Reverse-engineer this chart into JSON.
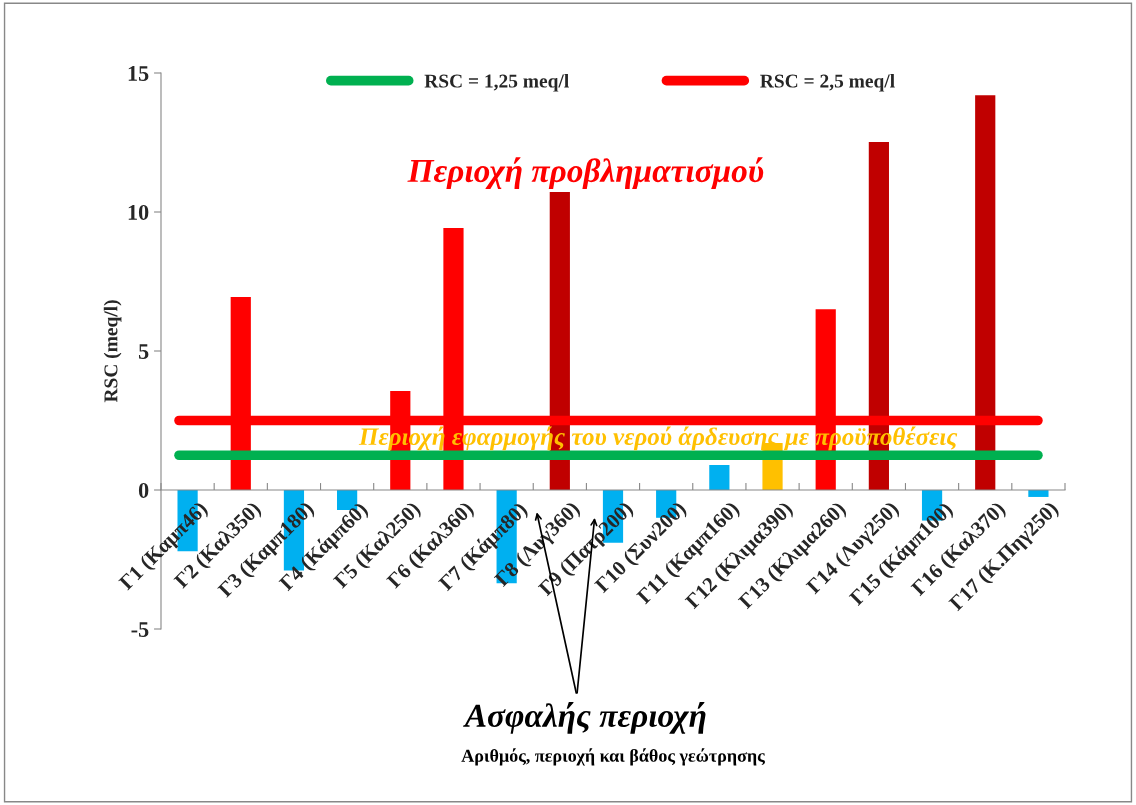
{
  "chart_data": {
    "type": "bar",
    "ylabel": "RSC (meq/l)",
    "categories": [
      "Γ1 (Καμπ46)",
      "Γ2 (Καλ350)",
      "Γ3 (Καμπ180)",
      "Γ4 (Κάμπ60)",
      "Γ5 (Καλ250)",
      "Γ6 (Καλ360)",
      "Γ7 (Κάμπ80)",
      "Γ8 (Λυγ360)",
      "Γ9 (Πατρ200)",
      "Γ10 (Συν200)",
      "Γ11 (Καμπ160)",
      "Γ12 (Κλιμα390)",
      "Γ13 (Κλιμα260)",
      "Γ14 (Λυγ250)",
      "Γ15 (Κάμπ100)",
      "Γ16 (Καλ370)",
      "Γ17 (Κ.Πηγ250)"
    ],
    "values": [
      -2.2,
      6.94,
      -2.9,
      -0.72,
      3.56,
      9.42,
      -3.35,
      10.72,
      -1.9,
      -1.0,
      0.9,
      1.69,
      6.5,
      12.52,
      -1.1,
      14.2,
      -0.25
    ],
    "colors": [
      "#00b0f0",
      "#ff0000",
      "#00b0f0",
      "#00b0f0",
      "#ff0000",
      "#ff0000",
      "#00b0f0",
      "#c00000",
      "#00b0f0",
      "#00b0f0",
      "#00b0f0",
      "#ffc000",
      "#ff0000",
      "#c00000",
      "#00b0f0",
      "#c00000",
      "#00b0f0"
    ],
    "ylim": [
      -5,
      15
    ],
    "yticks": [
      -5,
      0,
      5,
      10,
      15
    ],
    "ref_lines": [
      {
        "axis": "y",
        "value": 1.25,
        "label": "RSC = 1,25 meq/l",
        "color": "#00b050"
      },
      {
        "axis": "y",
        "value": 2.5,
        "label": "RSC = 2,5 meq/l",
        "color": "#ff0000"
      }
    ],
    "annotations": [
      "Περιοχή προβληματισμού",
      "Περιοχή εφαρμογής του νερού άρδευσης με προϋποθέσεις",
      "Ασφαλής περιοχή",
      "Αριθμός, περιοχή και βάθος γεώτρησης"
    ],
    "legend": "top",
    "grid": false
  }
}
